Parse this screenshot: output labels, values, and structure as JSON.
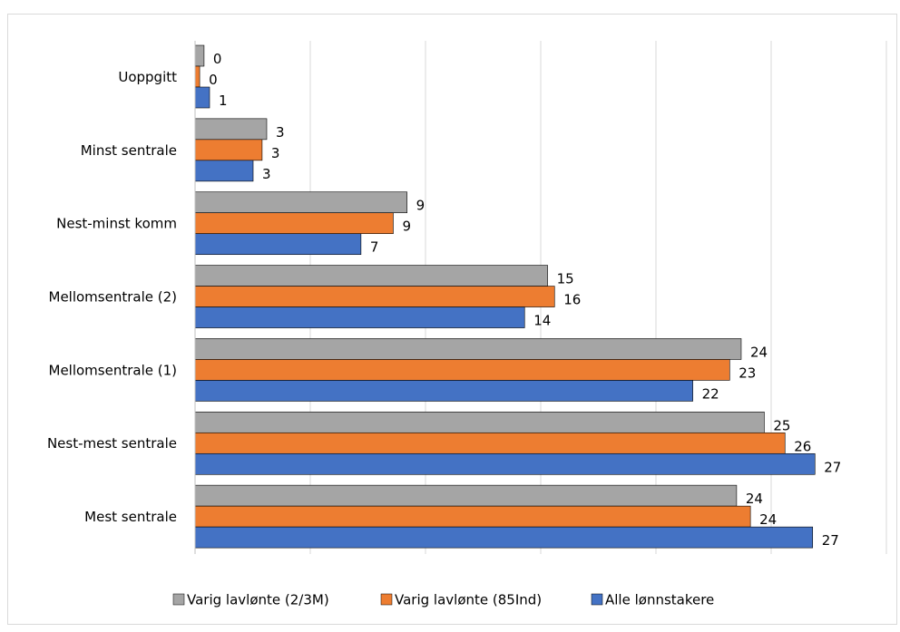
{
  "chart_data": {
    "type": "hbar",
    "categories": [
      "Uoppgitt",
      "Minst sentrale",
      "Nest-minst komm",
      "Mellomsentrale (2)",
      "Mellomsentrale (1)",
      "Nest-mest sentrale",
      "Mest sentrale"
    ],
    "series": [
      {
        "name": "Varig lavlønte (2/3M)",
        "color": "#a5a5a5",
        "values": [
          0.39,
          3.11,
          9.2,
          15.3,
          23.7,
          24.7,
          23.5
        ],
        "value_labels": [
          "0",
          "3",
          "9",
          "15",
          "24",
          "25",
          "24"
        ]
      },
      {
        "name": "Varig lavlønte (85Ind)",
        "color": "#ed7d31",
        "values": [
          0.2,
          2.91,
          8.6,
          15.6,
          23.2,
          25.6,
          24.1
        ],
        "value_labels": [
          "0",
          "3",
          "9",
          "16",
          "23",
          "26",
          "24"
        ]
      },
      {
        "name": "Alle lønnstakere",
        "color": "#4472c4",
        "values": [
          0.63,
          2.52,
          7.2,
          14.3,
          21.6,
          26.9,
          26.8
        ],
        "value_labels": [
          "1",
          "3",
          "7",
          "14",
          "22",
          "27",
          "27"
        ]
      }
    ],
    "xlim": [
      0,
      30
    ],
    "xticks": [
      0,
      5,
      10,
      15,
      20,
      25,
      30
    ],
    "grid": true
  }
}
